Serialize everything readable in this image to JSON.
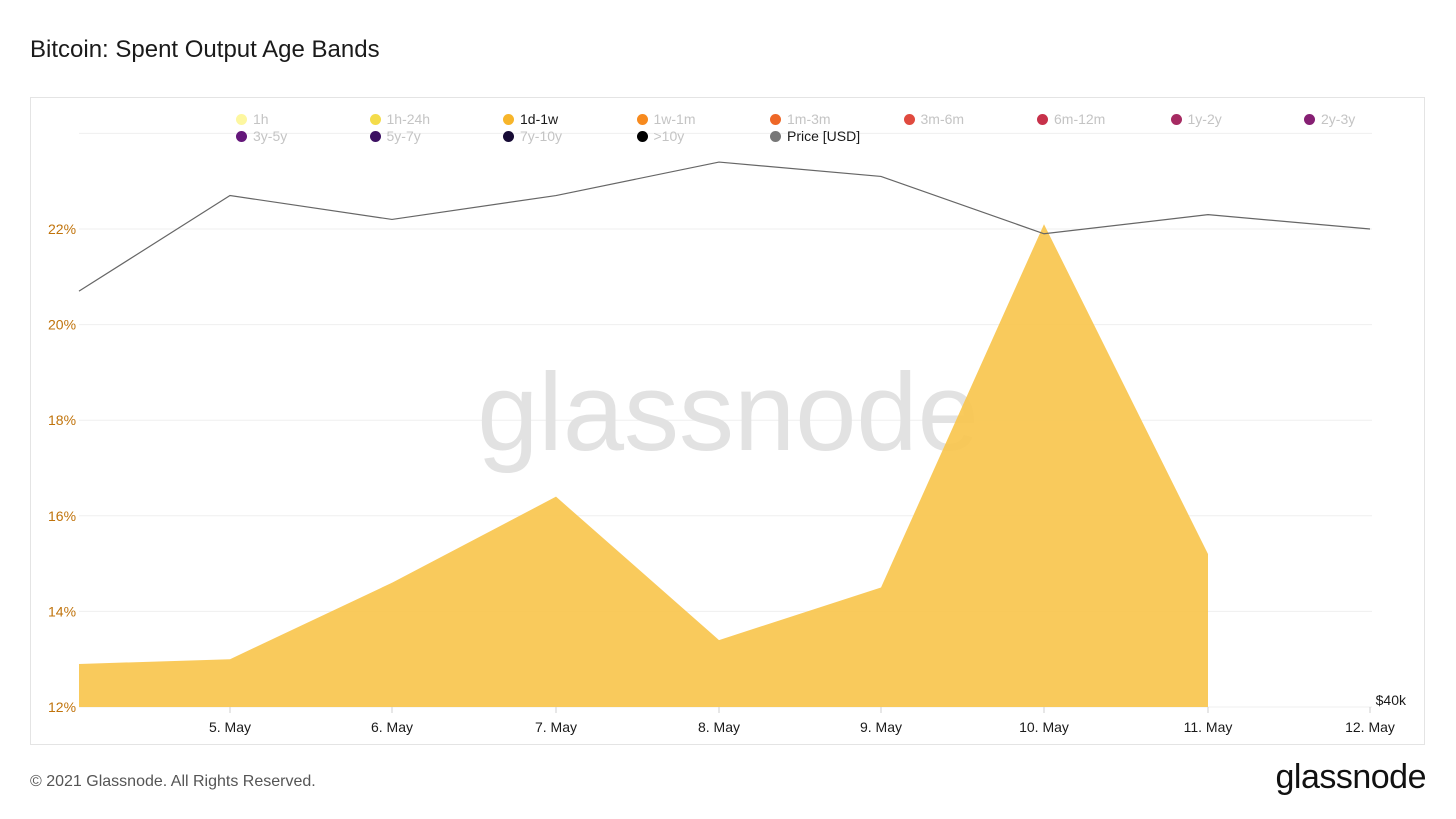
{
  "title": "Bitcoin: Spent Output Age Bands",
  "footer": "© 2021 Glassnode. All Rights Reserved.",
  "brand": "glassnode",
  "watermark": "glassnode",
  "legend": [
    {
      "label": "1h",
      "color": "#fdf7a0",
      "active": false
    },
    {
      "label": "1h-24h",
      "color": "#f4dc4a",
      "active": false
    },
    {
      "label": "1d-1w",
      "color": "#f7b52a",
      "active": true
    },
    {
      "label": "1w-1m",
      "color": "#f78a1e",
      "active": false
    },
    {
      "label": "1m-3m",
      "color": "#ee6727",
      "active": false
    },
    {
      "label": "3m-6m",
      "color": "#e04a3f",
      "active": false
    },
    {
      "label": "6m-12m",
      "color": "#c7314a",
      "active": false
    },
    {
      "label": "1y-2y",
      "color": "#a62a62",
      "active": false
    },
    {
      "label": "2y-3y",
      "color": "#861f73",
      "active": false
    },
    {
      "label": "3y-5y",
      "color": "#64177a",
      "active": false
    },
    {
      "label": "5y-7y",
      "color": "#3c1062",
      "active": false
    },
    {
      "label": "7y-10y",
      "color": "#170b35",
      "active": false
    },
    {
      "label": ">10y",
      "color": "#000000",
      "active": false
    },
    {
      "label": "Price [USD]",
      "color": "#777777",
      "active": true
    }
  ],
  "chart_data": {
    "type": "area",
    "x_ticks": [
      "5. May",
      "6. May",
      "7. May",
      "8. May",
      "9. May",
      "10. May",
      "11. May",
      "12. May"
    ],
    "y_ticks": [
      "12%",
      "14%",
      "16%",
      "18%",
      "20%",
      "22%"
    ],
    "ylim": [
      12,
      24
    ],
    "right_axis_label": "$40k",
    "grid": true,
    "legend_position": "top",
    "series": [
      {
        "name": "1d-1w",
        "kind": "area",
        "color": "#f9c54e",
        "x": [
          "4. May",
          "5. May",
          "6. May",
          "7. May",
          "8. May",
          "9. May",
          "10. May",
          "11. May"
        ],
        "values": [
          12.9,
          13.0,
          14.6,
          16.4,
          13.4,
          14.5,
          22.1,
          15.2
        ]
      },
      {
        "name": "Price [USD]",
        "kind": "line",
        "color": "#666666",
        "x": [
          "4. May",
          "5. May",
          "6. May",
          "7. May",
          "8. May",
          "9. May",
          "10. May",
          "11. May",
          "12. May"
        ],
        "values": [
          20.7,
          22.7,
          22.2,
          22.7,
          23.4,
          23.1,
          21.9,
          22.3,
          22.0
        ]
      }
    ]
  }
}
